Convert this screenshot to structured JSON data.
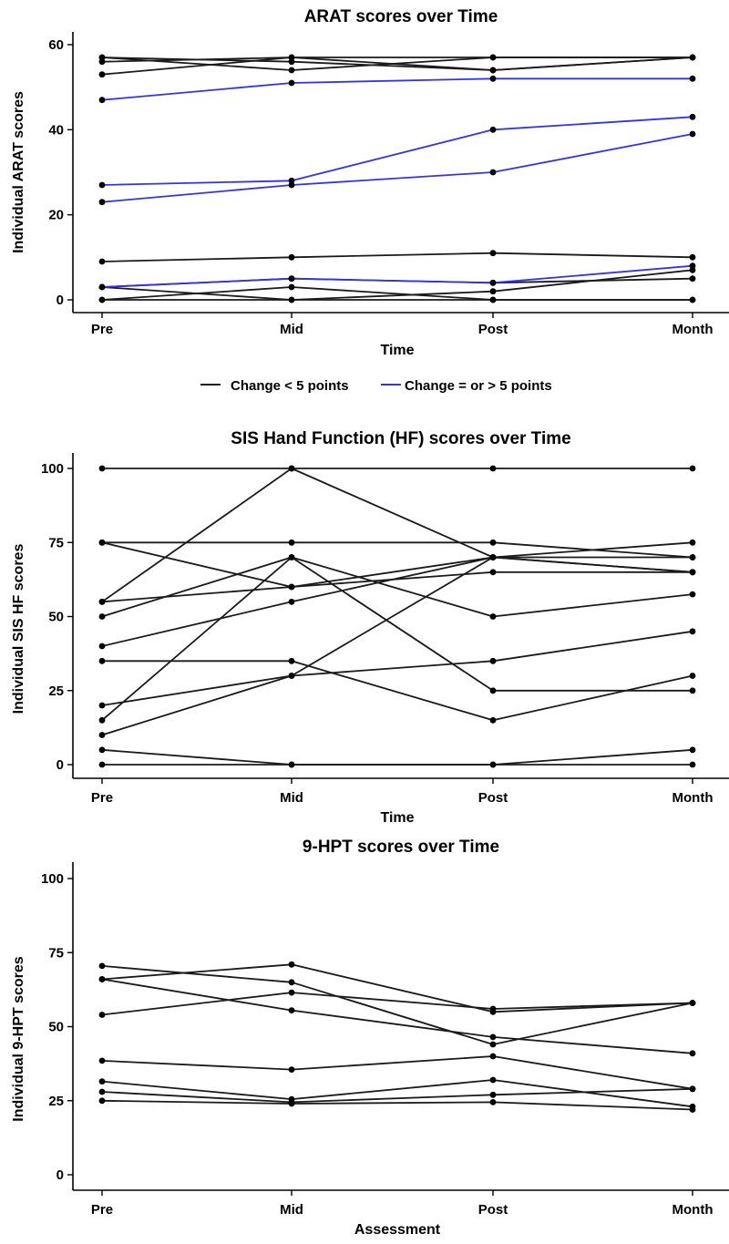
{
  "colors": {
    "below_threshold": "#1a1a1a",
    "above_threshold": "#3333ee",
    "point": "#000000",
    "axis": "#000000",
    "background": "#ffffff"
  },
  "chart_data": [
    {
      "type": "line",
      "title": "ARAT scores over Time",
      "xlabel": "Time",
      "ylabel": "Individual ARAT scores",
      "categories": [
        "Pre",
        "Mid",
        "Post",
        "Month"
      ],
      "ylim": [
        0,
        63
      ],
      "yticks": [
        "0",
        "20",
        "40",
        "60"
      ],
      "legend": {
        "position": "bottom",
        "entries": [
          {
            "label": "Change < 5 points",
            "color": "#1a1a1a"
          },
          {
            "label": "Change = or > 5 points",
            "color": "#3333ee"
          }
        ]
      },
      "series": [
        {
          "group": "below",
          "values": [
            57,
            56,
            54,
            57
          ]
        },
        {
          "group": "below",
          "values": [
            56,
            57,
            54,
            57
          ]
        },
        {
          "group": "below",
          "values": [
            53,
            57,
            57,
            57
          ]
        },
        {
          "group": "below",
          "values": [
            57,
            54,
            57,
            57
          ]
        },
        {
          "group": "below",
          "values": [
            9,
            10,
            11,
            10
          ]
        },
        {
          "group": "below",
          "values": [
            3,
            0,
            2,
            7
          ]
        },
        {
          "group": "below",
          "values": [
            0,
            3,
            0,
            0
          ]
        },
        {
          "group": "below",
          "values": [
            0,
            0,
            0,
            0
          ]
        },
        {
          "group": "below",
          "values": [
            3,
            5,
            4,
            5
          ]
        },
        {
          "group": "above",
          "values": [
            47,
            51,
            52,
            52
          ]
        },
        {
          "group": "above",
          "values": [
            27,
            28,
            40,
            43
          ]
        },
        {
          "group": "above",
          "values": [
            23,
            27,
            30,
            39
          ]
        },
        {
          "group": "above",
          "values": [
            3,
            5,
            4,
            8
          ]
        }
      ]
    },
    {
      "type": "line",
      "title": "SIS Hand Function (HF) scores over Time",
      "xlabel": "Time",
      "ylabel": "Individual SIS HF scores",
      "categories": [
        "Pre",
        "Mid",
        "Post",
        "Month"
      ],
      "ylim": [
        0,
        105
      ],
      "yticks": [
        "0",
        "25",
        "50",
        "75",
        "100"
      ],
      "series": [
        {
          "group": "below",
          "values": [
            100,
            100,
            100,
            100
          ]
        },
        {
          "group": "below",
          "values": [
            55,
            100,
            70,
            70
          ]
        },
        {
          "group": "below",
          "values": [
            75,
            75,
            75,
            70
          ]
        },
        {
          "group": "below",
          "values": [
            75,
            60,
            70,
            65
          ]
        },
        {
          "group": "below",
          "values": [
            55,
            60,
            65,
            65
          ]
        },
        {
          "group": "below",
          "values": [
            50,
            70,
            50,
            57.5
          ]
        },
        {
          "group": "below",
          "values": [
            40,
            55,
            70,
            75
          ]
        },
        {
          "group": "below",
          "values": [
            15,
            70,
            25,
            25
          ]
        },
        {
          "group": "below",
          "values": [
            35,
            35,
            15,
            30
          ]
        },
        {
          "group": "below",
          "values": [
            20,
            30,
            35,
            45
          ]
        },
        {
          "group": "below",
          "values": [
            10,
            30,
            70,
            65
          ]
        },
        {
          "group": "below",
          "values": [
            5,
            0,
            0,
            5
          ]
        },
        {
          "group": "below",
          "values": [
            0,
            0,
            0,
            0
          ]
        }
      ]
    },
    {
      "type": "line",
      "title": "9-HPT scores over Time",
      "xlabel": "Assessment",
      "ylabel": "Individual 9-HPT scores",
      "categories": [
        "Pre",
        "Mid",
        "Post",
        "Month"
      ],
      "ylim": [
        0,
        105
      ],
      "yticks": [
        "0",
        "25",
        "50",
        "75",
        "100"
      ],
      "series": [
        {
          "group": "below",
          "values": [
            70.5,
            65,
            44,
            58
          ]
        },
        {
          "group": "below",
          "values": [
            66,
            71,
            55,
            58
          ]
        },
        {
          "group": "below",
          "values": [
            66,
            55.5,
            46.5,
            41
          ]
        },
        {
          "group": "below",
          "values": [
            54,
            61.5,
            56,
            58
          ]
        },
        {
          "group": "below",
          "values": [
            38.5,
            35.5,
            40,
            29
          ]
        },
        {
          "group": "below",
          "values": [
            31.5,
            25.5,
            32,
            23
          ]
        },
        {
          "group": "below",
          "values": [
            28,
            24.5,
            27,
            29
          ]
        },
        {
          "group": "below",
          "values": [
            25,
            24,
            24.5,
            22
          ]
        }
      ]
    }
  ]
}
